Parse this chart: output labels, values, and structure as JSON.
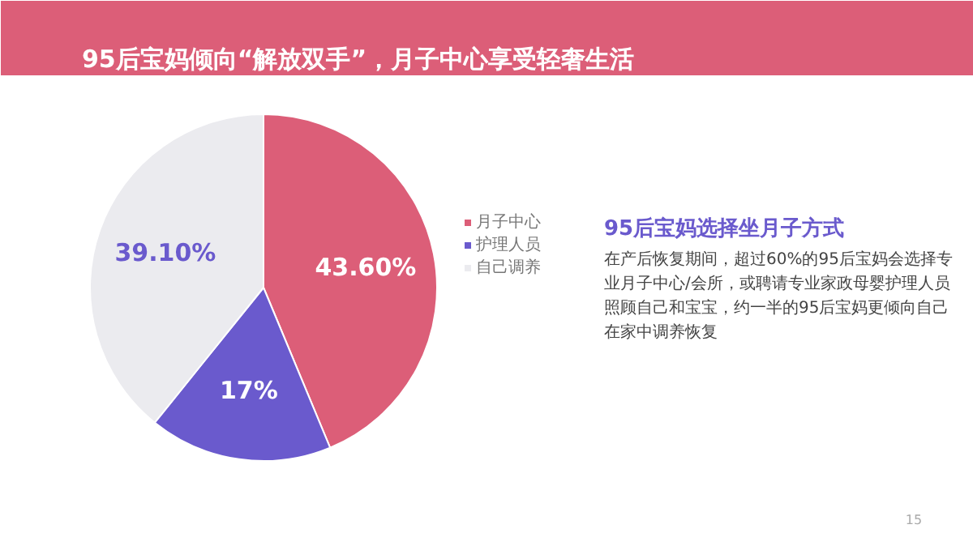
{
  "chart_data": {
    "type": "pie",
    "title": "95后宝妈倾向“解放双手”，月子中心享受轻奢生活",
    "subtitle": "95后宝妈选择坐月子方式",
    "categories": [
      "月子中心",
      "护理人员",
      "自己调养"
    ],
    "values": [
      43.6,
      17,
      39.1
    ],
    "colors": [
      "#dc5e78",
      "#6a5acd",
      "#ebebef"
    ],
    "value_labels": [
      "43.60%",
      "17%",
      "39.10%"
    ],
    "legend": "right",
    "annotations": [
      "在产后恢复期间，超过60%的95后宝妈会选择专业月子中心/会所，或聘请专业家政母婴护理人员照顾自己和宝宝，约一半的95后宝妈更倾向自己在家中调养恢复",
      "15"
    ]
  }
}
